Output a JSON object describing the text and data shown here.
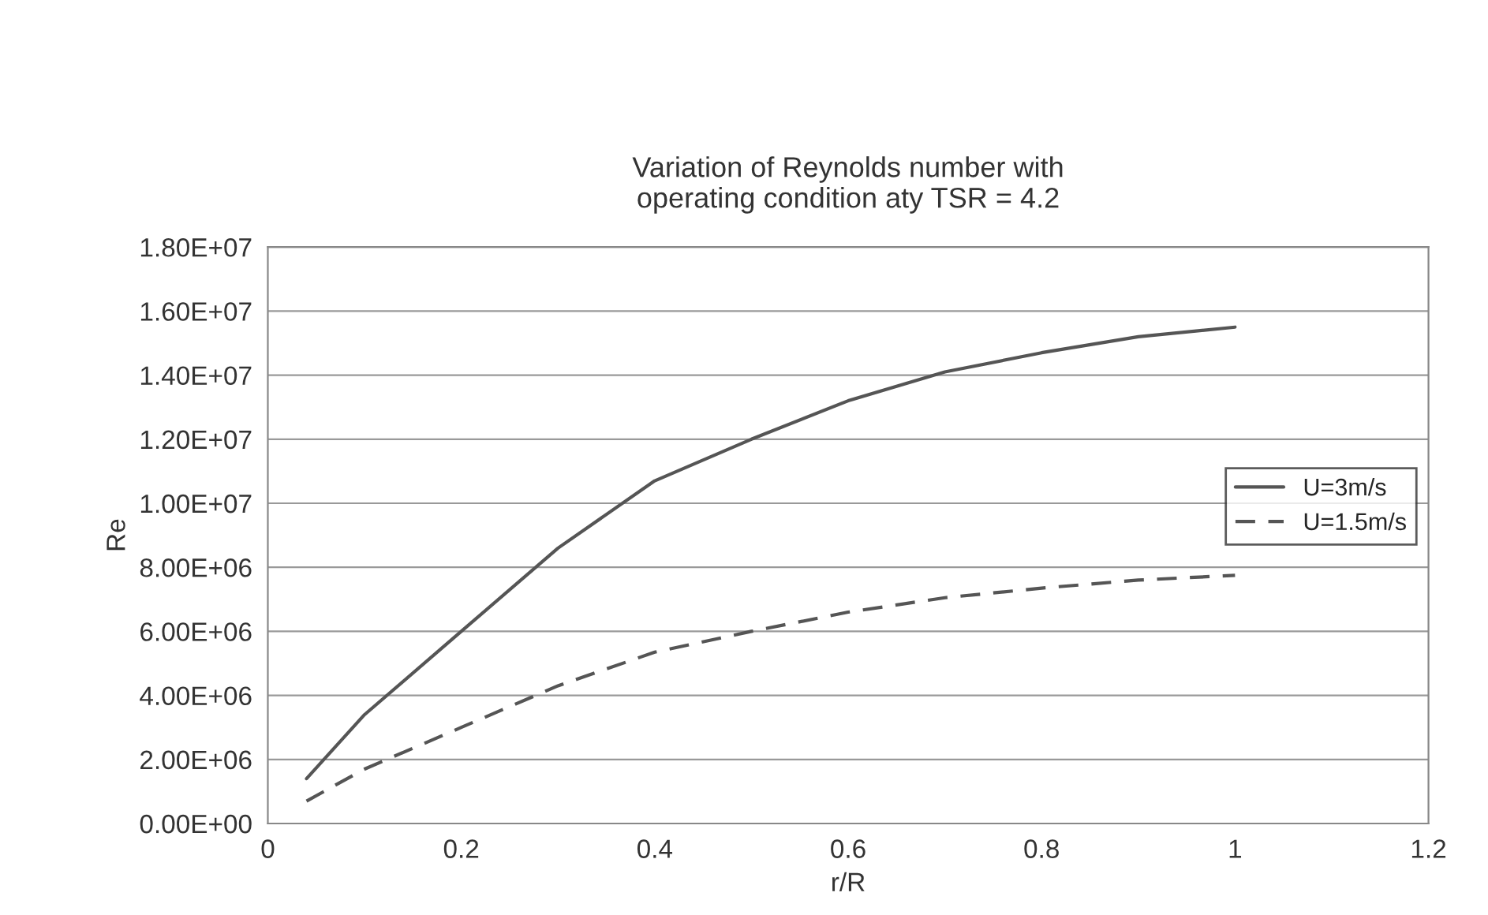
{
  "chart_data": {
    "type": "line",
    "title": "Variation of Reynolds number with\noperating condition aty TSR = 4.2",
    "xlabel": "r/R",
    "ylabel": "Re",
    "xlim": [
      0,
      1.2
    ],
    "xticks": [
      0,
      0.2,
      0.4,
      0.6,
      0.8,
      1,
      1.2
    ],
    "ylim": [
      0,
      18000000
    ],
    "yticks": [
      {
        "value": 0,
        "label": "0.00E+00"
      },
      {
        "value": 2000000,
        "label": "2.00E+06"
      },
      {
        "value": 4000000,
        "label": "4.00E+06"
      },
      {
        "value": 6000000,
        "label": "6.00E+06"
      },
      {
        "value": 8000000,
        "label": "8.00E+06"
      },
      {
        "value": 10000000,
        "label": "1.00E+07"
      },
      {
        "value": 12000000,
        "label": "1.20E+07"
      },
      {
        "value": 14000000,
        "label": "1.40E+07"
      },
      {
        "value": 16000000,
        "label": "1.60E+07"
      },
      {
        "value": 18000000,
        "label": "1.80E+07"
      }
    ],
    "grid": "y",
    "legend": "right",
    "marker": "none",
    "series": [
      {
        "name": "U=3m/s",
        "color": "#555555",
        "line_style": "solid",
        "x": [
          0.04,
          0.1,
          0.2,
          0.3,
          0.4,
          0.5,
          0.6,
          0.7,
          0.8,
          0.9,
          1.0
        ],
        "values": [
          1400000,
          3400000,
          6000000,
          8600000,
          10700000,
          12000000,
          13200000,
          14100000,
          14700000,
          15200000,
          15500000
        ]
      },
      {
        "name": "U=1.5m/s",
        "color": "#555555",
        "line_style": "dashed",
        "x": [
          0.04,
          0.1,
          0.2,
          0.3,
          0.4,
          0.5,
          0.6,
          0.7,
          0.8,
          0.9,
          1.0
        ],
        "values": [
          700000,
          1700000,
          3000000,
          4300000,
          5350000,
          6000000,
          6600000,
          7050000,
          7350000,
          7600000,
          7750000
        ]
      }
    ]
  }
}
